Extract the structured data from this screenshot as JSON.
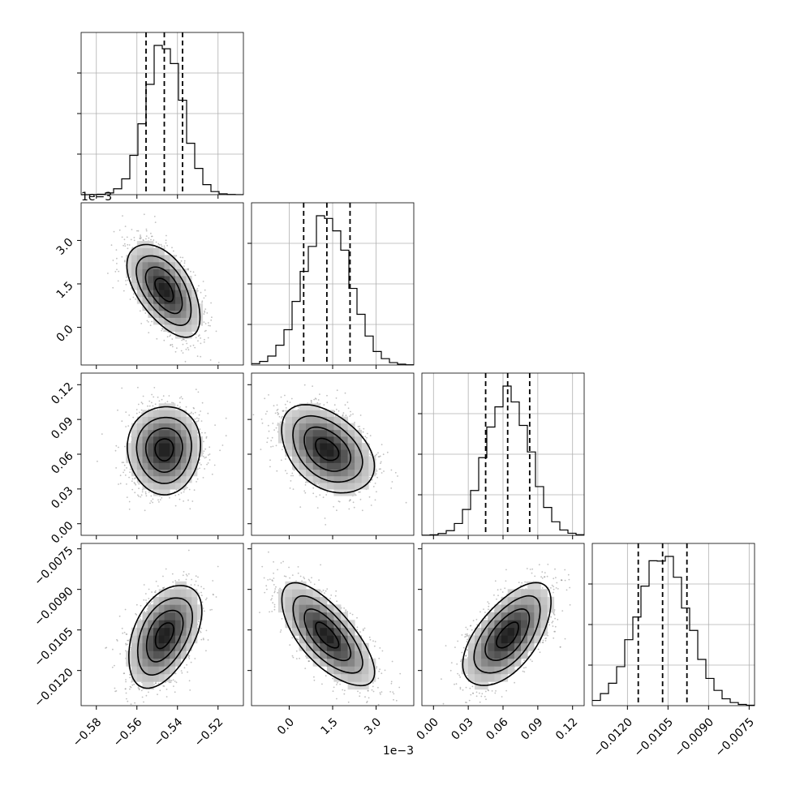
{
  "chart_data": {
    "type": "corner",
    "params": [
      {
        "ticks": [
          -0.58,
          -0.56,
          -0.54,
          -0.52
        ],
        "tick_labels": [
          "−0.58",
          "−0.56",
          "−0.54",
          "−0.52"
        ],
        "range": [
          -0.5875,
          -0.5075
        ],
        "mean": -0.5465,
        "quantiles": [
          -0.5555,
          -0.5465,
          -0.5375
        ],
        "sd": 0.009,
        "offset_label": ""
      },
      {
        "ticks": [
          0.0,
          1.5,
          3.0
        ],
        "tick_labels": [
          "0.0",
          "1.5",
          "3.0"
        ],
        "range": [
          -1.3,
          4.3
        ],
        "mean": 1.3,
        "quantiles": [
          0.5,
          1.3,
          2.1
        ],
        "sd": 0.8,
        "offset_label": "1e−3"
      },
      {
        "ticks": [
          0.0,
          0.03,
          0.06,
          0.09,
          0.12
        ],
        "tick_labels": [
          "0.00",
          "0.03",
          "0.06",
          "0.09",
          "0.12"
        ],
        "range": [
          -0.01,
          0.13
        ],
        "mean": 0.064,
        "quantiles": [
          0.045,
          0.064,
          0.083
        ],
        "sd": 0.019,
        "offset_label": ""
      },
      {
        "ticks": [
          -0.012,
          -0.0105,
          -0.009,
          -0.0075
        ],
        "tick_labels": [
          "−0.0120",
          "−0.0105",
          "−0.0090",
          "−0.0075"
        ],
        "range": [
          -0.0133,
          -0.0073
        ],
        "mean": -0.0107,
        "quantiles": [
          -0.0116,
          -0.0107,
          -0.0098
        ],
        "sd": 0.00095,
        "offset_label": ""
      }
    ],
    "correlations": [
      [
        1.0,
        -0.55,
        0.02,
        0.45
      ],
      [
        -0.55,
        1.0,
        -0.4,
        -0.7
      ],
      [
        0.02,
        -0.4,
        1.0,
        0.6
      ],
      [
        0.45,
        -0.7,
        0.6,
        1.0
      ]
    ],
    "contour_levels": [
      0.5,
      1.0,
      1.5,
      2.0
    ],
    "grid": true,
    "colors": {
      "line": "#000000",
      "points": "#8c8c8c",
      "grid": "#b0b0b0"
    }
  }
}
